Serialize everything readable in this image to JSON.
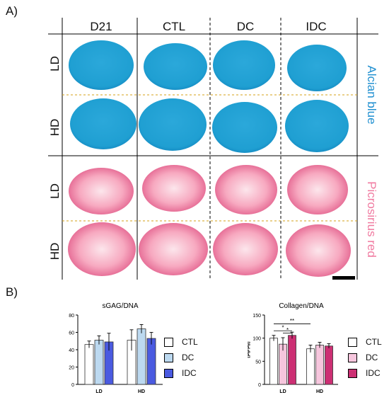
{
  "panel_a_label": "A)",
  "panel_b_label": "B)",
  "columns": [
    "D21",
    "CTL",
    "DC",
    "IDC"
  ],
  "rows": [
    "LD",
    "HD",
    "LD",
    "HD"
  ],
  "stain_labels": {
    "alcian": "Alcian blue",
    "picro": "Picrosirius red"
  },
  "colors": {
    "alcian": "#1f9fd2",
    "alcian_dark": "#1384bd",
    "picro": "#f07aa0",
    "picro_dark": "#d94e7f",
    "picro_light": "#fbd2dd",
    "divider": "#d4a017",
    "ctl": "#ffffff",
    "dc_blue": "#bcd9f0",
    "idc_blue": "#4a5ae0",
    "dc_pink": "#f6c6dd",
    "idc_pink": "#cc2f73"
  },
  "chart_data": [
    {
      "type": "bar",
      "title": "sGAG/DNA",
      "ylabel": "[µg/µg]",
      "categories": [
        "LD",
        "HD"
      ],
      "ylim": [
        0,
        80
      ],
      "yticks": [
        "0",
        "20",
        "40",
        "60",
        "80"
      ],
      "series": [
        {
          "name": "CTL",
          "values": [
            46,
            51
          ],
          "errors": [
            4,
            12
          ],
          "color": "#ffffff"
        },
        {
          "name": "DC",
          "values": [
            51,
            64
          ],
          "errors": [
            5,
            5
          ],
          "color": "#bcd9f0"
        },
        {
          "name": "IDC",
          "values": [
            49,
            53
          ],
          "errors": [
            10,
            7
          ],
          "color": "#4a5ae0"
        }
      ],
      "legend": [
        "CTL",
        "DC",
        "IDC"
      ]
    },
    {
      "type": "bar",
      "title": "Collagen/DNA",
      "ylabel": "[µg/µg]",
      "categories": [
        "LD",
        "HD"
      ],
      "ylim": [
        0,
        150
      ],
      "yticks": [
        "0",
        "50",
        "100",
        "150"
      ],
      "series": [
        {
          "name": "CTL",
          "values": [
            100,
            77
          ],
          "errors": [
            6,
            8
          ],
          "color": "#ffffff"
        },
        {
          "name": "DC",
          "values": [
            87,
            85
          ],
          "errors": [
            14,
            6
          ],
          "color": "#f6c6dd"
        },
        {
          "name": "IDC",
          "values": [
            106,
            83
          ],
          "errors": [
            7,
            5
          ],
          "color": "#cc2f73"
        }
      ],
      "legend": [
        "CTL",
        "DC",
        "IDC"
      ],
      "significance": [
        "*",
        "*",
        "**"
      ]
    }
  ]
}
